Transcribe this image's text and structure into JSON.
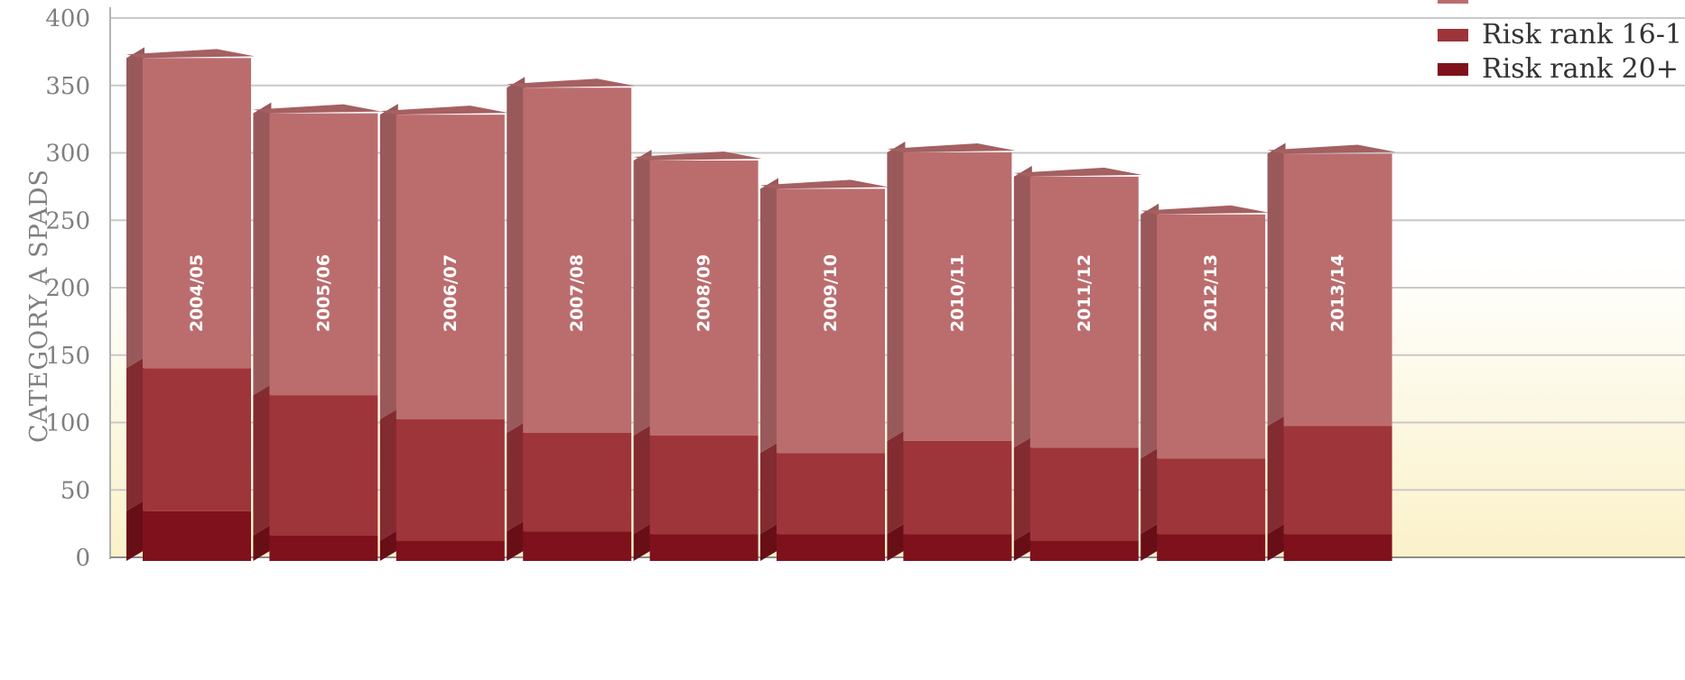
{
  "chart_data": {
    "type": "bar",
    "stacked": true,
    "style": "3d",
    "ylabel": "CATEGORY A SPADS",
    "xlabel": "",
    "ylim": [
      0,
      400
    ],
    "yticks": [
      0,
      50,
      100,
      150,
      200,
      250,
      300,
      350,
      400
    ],
    "grid": true,
    "legend_position": "top-right",
    "categories": [
      "2004/05",
      "2005/06",
      "2006/07",
      "2007/08",
      "2008/09",
      "2009/10",
      "2010/11",
      "2011/12",
      "2012/13",
      "2013/14"
    ],
    "series": [
      {
        "name": "Risk rank 20+",
        "color": "#7f111c",
        "values": [
          37,
          19,
          15,
          22,
          20,
          20,
          20,
          15,
          20,
          20
        ]
      },
      {
        "name": "Risk rank 16-1",
        "color": "#9e353b",
        "values": [
          106,
          104,
          90,
          73,
          73,
          60,
          69,
          69,
          56,
          80
        ]
      },
      {
        "name": "",
        "color": "#bb6d6e",
        "values": [
          230,
          209,
          226,
          256,
          204,
          196,
          214,
          201,
          181,
          202
        ]
      }
    ],
    "legend": [
      "Risk rank 16-1",
      "Risk rank 20+"
    ]
  }
}
